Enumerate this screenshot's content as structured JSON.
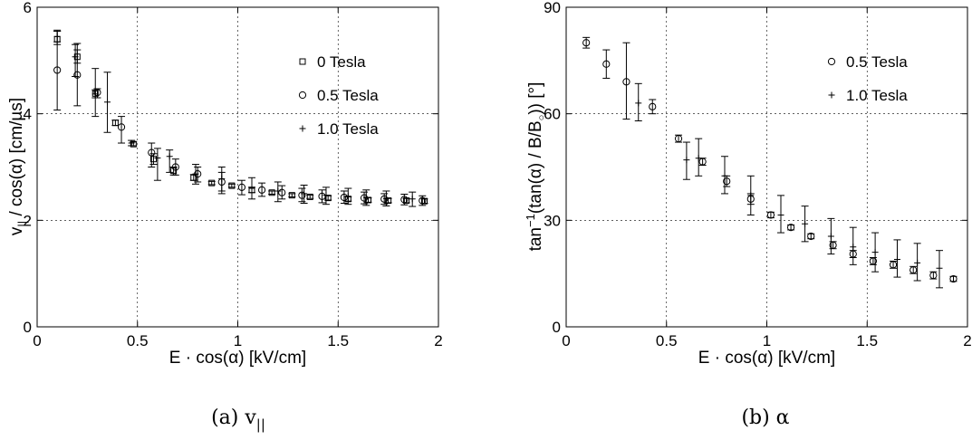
{
  "chart_data": [
    {
      "type": "scatter",
      "panel_caption": "(a) v",
      "caption_subscript": "||",
      "xlabel": "E · cos(α) [kV/cm]",
      "ylabel_main": "v",
      "ylabel_sub": "||",
      "ylabel_rest": " / cos(α) [cm/µs]",
      "xlim": [
        0,
        2
      ],
      "ylim": [
        0,
        6
      ],
      "xticks": [
        0,
        0.5,
        1,
        1.5,
        2
      ],
      "xtick_labels": [
        "0",
        "0.5",
        "1",
        "1.5",
        "2"
      ],
      "yticks": [
        0,
        2,
        4,
        6
      ],
      "ytick_labels": [
        "0",
        "2",
        "4",
        "6"
      ],
      "grid": true,
      "legend_position": "top-right",
      "series": [
        {
          "name": "0 Tesla",
          "marker": "square",
          "points": [
            {
              "x": 0.1,
              "y": 5.4,
              "lo": 5.3,
              "hi": 5.55
            },
            {
              "x": 0.2,
              "y": 5.07,
              "lo": 4.95,
              "hi": 5.2
            },
            {
              "x": 0.29,
              "y": 4.38,
              "lo": 4.3,
              "hi": 4.45
            },
            {
              "x": 0.39,
              "y": 3.83,
              "lo": 3.78,
              "hi": 3.88
            },
            {
              "x": 0.48,
              "y": 3.43,
              "lo": 3.4,
              "hi": 3.47
            },
            {
              "x": 0.58,
              "y": 3.15,
              "lo": 3.05,
              "hi": 3.25
            },
            {
              "x": 0.68,
              "y": 2.93,
              "lo": 2.85,
              "hi": 3.0
            },
            {
              "x": 0.78,
              "y": 2.8,
              "lo": 2.75,
              "hi": 2.86
            },
            {
              "x": 0.87,
              "y": 2.7,
              "lo": 2.67,
              "hi": 2.73
            },
            {
              "x": 0.97,
              "y": 2.65,
              "lo": 2.62,
              "hi": 2.68
            },
            {
              "x": 1.07,
              "y": 2.57,
              "lo": 2.52,
              "hi": 2.62
            },
            {
              "x": 1.17,
              "y": 2.52,
              "lo": 2.49,
              "hi": 2.55
            },
            {
              "x": 1.27,
              "y": 2.47,
              "lo": 2.44,
              "hi": 2.5
            },
            {
              "x": 1.36,
              "y": 2.44,
              "lo": 2.41,
              "hi": 2.47
            },
            {
              "x": 1.45,
              "y": 2.42,
              "lo": 2.38,
              "hi": 2.46
            },
            {
              "x": 1.55,
              "y": 2.4,
              "lo": 2.36,
              "hi": 2.44
            },
            {
              "x": 1.65,
              "y": 2.38,
              "lo": 2.34,
              "hi": 2.42
            },
            {
              "x": 1.75,
              "y": 2.37,
              "lo": 2.33,
              "hi": 2.41
            },
            {
              "x": 1.84,
              "y": 2.37,
              "lo": 2.33,
              "hi": 2.41
            },
            {
              "x": 1.93,
              "y": 2.36,
              "lo": 2.32,
              "hi": 2.4
            }
          ]
        },
        {
          "name": "0.5 Tesla",
          "marker": "circle",
          "points": [
            {
              "x": 0.1,
              "y": 4.82,
              "lo": 4.07,
              "hi": 5.55
            },
            {
              "x": 0.2,
              "y": 4.73,
              "lo": 4.15,
              "hi": 5.32
            },
            {
              "x": 0.3,
              "y": 4.4,
              "lo": 4.3,
              "hi": 4.47
            },
            {
              "x": 0.42,
              "y": 3.75,
              "lo": 3.45,
              "hi": 3.95
            },
            {
              "x": 0.57,
              "y": 3.27,
              "lo": 3.0,
              "hi": 3.45
            },
            {
              "x": 0.69,
              "y": 3.0,
              "lo": 2.85,
              "hi": 3.15
            },
            {
              "x": 0.8,
              "y": 2.87,
              "lo": 2.72,
              "hi": 3.0
            },
            {
              "x": 0.92,
              "y": 2.72,
              "lo": 2.55,
              "hi": 2.9
            },
            {
              "x": 1.02,
              "y": 2.62,
              "lo": 2.48,
              "hi": 2.75
            },
            {
              "x": 1.12,
              "y": 2.57,
              "lo": 2.45,
              "hi": 2.7
            },
            {
              "x": 1.22,
              "y": 2.52,
              "lo": 2.4,
              "hi": 2.65
            },
            {
              "x": 1.32,
              "y": 2.47,
              "lo": 2.35,
              "hi": 2.6
            },
            {
              "x": 1.42,
              "y": 2.45,
              "lo": 2.33,
              "hi": 2.57
            },
            {
              "x": 1.53,
              "y": 2.43,
              "lo": 2.32,
              "hi": 2.55
            },
            {
              "x": 1.63,
              "y": 2.42,
              "lo": 2.31,
              "hi": 2.53
            },
            {
              "x": 1.73,
              "y": 2.4,
              "lo": 2.3,
              "hi": 2.5
            },
            {
              "x": 1.83,
              "y": 2.39,
              "lo": 2.29,
              "hi": 2.49
            },
            {
              "x": 1.92,
              "y": 2.37,
              "lo": 2.28,
              "hi": 2.46
            }
          ]
        },
        {
          "name": "1.0 Tesla",
          "marker": "plus",
          "points": [
            {
              "x": 0.1,
              "y": 5.45,
              "lo": 5.35,
              "hi": 5.57
            },
            {
              "x": 0.19,
              "y": 5.07,
              "lo": 4.7,
              "hi": 5.3
            },
            {
              "x": 0.29,
              "y": 4.37,
              "lo": 3.95,
              "hi": 4.85
            },
            {
              "x": 0.35,
              "y": 4.22,
              "lo": 3.65,
              "hi": 4.78
            },
            {
              "x": 0.47,
              "y": 3.45,
              "lo": 3.4,
              "hi": 3.5
            },
            {
              "x": 0.6,
              "y": 3.17,
              "lo": 2.75,
              "hi": 3.35
            },
            {
              "x": 0.66,
              "y": 3.2,
              "lo": 2.9,
              "hi": 3.32
            },
            {
              "x": 0.79,
              "y": 2.87,
              "lo": 2.68,
              "hi": 3.05
            },
            {
              "x": 0.92,
              "y": 2.78,
              "lo": 2.5,
              "hi": 3.0
            },
            {
              "x": 1.07,
              "y": 2.6,
              "lo": 2.4,
              "hi": 2.8
            },
            {
              "x": 1.2,
              "y": 2.55,
              "lo": 2.35,
              "hi": 2.72
            },
            {
              "x": 1.33,
              "y": 2.5,
              "lo": 2.32,
              "hi": 2.66
            },
            {
              "x": 1.44,
              "y": 2.47,
              "lo": 2.3,
              "hi": 2.62
            },
            {
              "x": 1.55,
              "y": 2.45,
              "lo": 2.3,
              "hi": 2.6
            },
            {
              "x": 1.64,
              "y": 2.43,
              "lo": 2.28,
              "hi": 2.57
            },
            {
              "x": 1.74,
              "y": 2.41,
              "lo": 2.27,
              "hi": 2.55
            },
            {
              "x": 1.87,
              "y": 2.4,
              "lo": 2.26,
              "hi": 2.53
            }
          ]
        }
      ]
    },
    {
      "type": "scatter",
      "panel_caption": "(b) α",
      "xlabel": "E · cos(α) [kV/cm]",
      "ylabel_main": "tan",
      "ylabel_sup": "−1",
      "ylabel_mid": "(tan(α) / B/B",
      "ylabel_sub": "○",
      "ylabel_rest": ")) [°]",
      "xlim": [
        0,
        2
      ],
      "ylim": [
        0,
        90
      ],
      "xticks": [
        0,
        0.5,
        1,
        1.5,
        2
      ],
      "xtick_labels": [
        "0",
        "0.5",
        "1",
        "1.5",
        "2"
      ],
      "yticks": [
        0,
        30,
        60,
        90
      ],
      "ytick_labels": [
        "0",
        "30",
        "60",
        "90"
      ],
      "grid": true,
      "legend_position": "top-right",
      "series": [
        {
          "name": "0.5 Tesla",
          "marker": "circle",
          "points": [
            {
              "x": 0.1,
              "y": 80,
              "lo": 78.5,
              "hi": 81.5
            },
            {
              "x": 0.2,
              "y": 74,
              "lo": 70,
              "hi": 78
            },
            {
              "x": 0.3,
              "y": 69,
              "lo": 58.5,
              "hi": 80
            },
            {
              "x": 0.43,
              "y": 62,
              "lo": 60,
              "hi": 64
            },
            {
              "x": 0.56,
              "y": 53,
              "lo": 52,
              "hi": 54
            },
            {
              "x": 0.68,
              "y": 46.5,
              "lo": 45.5,
              "hi": 47.5
            },
            {
              "x": 0.8,
              "y": 41,
              "lo": 39.5,
              "hi": 42.5
            },
            {
              "x": 0.92,
              "y": 36,
              "lo": 34.5,
              "hi": 37.5
            },
            {
              "x": 1.02,
              "y": 31.5,
              "lo": 30.7,
              "hi": 32.3
            },
            {
              "x": 1.12,
              "y": 28,
              "lo": 27.3,
              "hi": 28.7
            },
            {
              "x": 1.22,
              "y": 25.5,
              "lo": 24.8,
              "hi": 26.2
            },
            {
              "x": 1.33,
              "y": 23,
              "lo": 22,
              "hi": 24
            },
            {
              "x": 1.43,
              "y": 20.5,
              "lo": 19.5,
              "hi": 21.5
            },
            {
              "x": 1.53,
              "y": 18.5,
              "lo": 17.5,
              "hi": 19.5
            },
            {
              "x": 1.63,
              "y": 17.5,
              "lo": 16.5,
              "hi": 18.5
            },
            {
              "x": 1.73,
              "y": 16,
              "lo": 15,
              "hi": 17
            },
            {
              "x": 1.83,
              "y": 14.5,
              "lo": 13.5,
              "hi": 15.5
            },
            {
              "x": 1.93,
              "y": 13.5,
              "lo": 12.8,
              "hi": 14.2
            }
          ]
        },
        {
          "name": "1.0 Tesla",
          "marker": "plus",
          "points": [
            {
              "x": 0.36,
              "y": 63,
              "lo": 58,
              "hi": 68.5
            },
            {
              "x": 0.6,
              "y": 47,
              "lo": 41.5,
              "hi": 52
            },
            {
              "x": 0.66,
              "y": 47.5,
              "lo": 42.5,
              "hi": 53
            },
            {
              "x": 0.79,
              "y": 42.5,
              "lo": 37.5,
              "hi": 48
            },
            {
              "x": 0.92,
              "y": 37,
              "lo": 31.5,
              "hi": 42.5
            },
            {
              "x": 1.07,
              "y": 31.5,
              "lo": 26.5,
              "hi": 37
            },
            {
              "x": 1.19,
              "y": 29,
              "lo": 24,
              "hi": 34
            },
            {
              "x": 1.32,
              "y": 25.5,
              "lo": 20.5,
              "hi": 30.5
            },
            {
              "x": 1.43,
              "y": 22.5,
              "lo": 17.5,
              "hi": 28
            },
            {
              "x": 1.54,
              "y": 21,
              "lo": 15.5,
              "hi": 26.5
            },
            {
              "x": 1.65,
              "y": 19,
              "lo": 14,
              "hi": 24.5
            },
            {
              "x": 1.75,
              "y": 18,
              "lo": 13,
              "hi": 23.5
            },
            {
              "x": 1.86,
              "y": 16.5,
              "lo": 11,
              "hi": 21.5
            }
          ]
        }
      ]
    }
  ]
}
